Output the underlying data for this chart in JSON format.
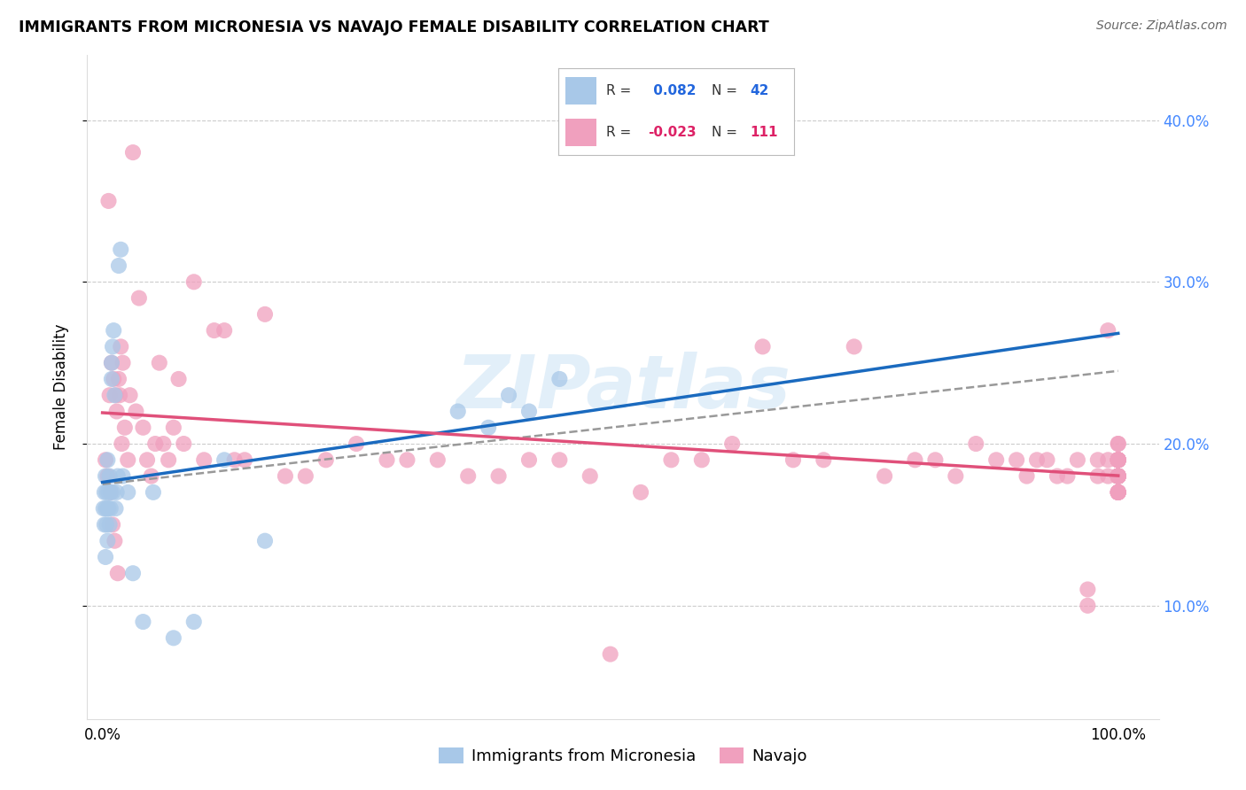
{
  "title": "IMMIGRANTS FROM MICRONESIA VS NAVAJO FEMALE DISABILITY CORRELATION CHART",
  "source": "Source: ZipAtlas.com",
  "ylabel": "Female Disability",
  "y_ticks": [
    0.1,
    0.2,
    0.3,
    0.4
  ],
  "y_tick_labels": [
    "10.0%",
    "20.0%",
    "30.0%",
    "40.0%"
  ],
  "xlim": [
    0.0,
    1.0
  ],
  "ylim": [
    0.03,
    0.44
  ],
  "blue_color": "#a8c8e8",
  "pink_color": "#f0a0be",
  "blue_line_color": "#1a6abf",
  "pink_line_color": "#e0507a",
  "gray_dash_color": "#999999",
  "blue_r": 0.082,
  "pink_r": -0.023,
  "blue_n": 42,
  "pink_n": 111,
  "watermark": "ZIPatlas",
  "legend_r1_text": "R = ",
  "legend_r1_val": " 0.082",
  "legend_n1_text": "N = ",
  "legend_n1_val": "42",
  "legend_r2_text": "R = ",
  "legend_r2_val": "-0.023",
  "legend_n2_text": "N = ",
  "legend_n2_val": "111",
  "blue_x": [
    0.001,
    0.002,
    0.002,
    0.003,
    0.003,
    0.003,
    0.004,
    0.004,
    0.005,
    0.005,
    0.005,
    0.006,
    0.006,
    0.007,
    0.007,
    0.008,
    0.008,
    0.009,
    0.009,
    0.01,
    0.01,
    0.011,
    0.012,
    0.013,
    0.014,
    0.015,
    0.016,
    0.018,
    0.02,
    0.025,
    0.03,
    0.04,
    0.05,
    0.07,
    0.09,
    0.12,
    0.16,
    0.35,
    0.38,
    0.4,
    0.42,
    0.45
  ],
  "blue_y": [
    0.16,
    0.17,
    0.15,
    0.18,
    0.16,
    0.13,
    0.17,
    0.15,
    0.16,
    0.19,
    0.14,
    0.17,
    0.16,
    0.18,
    0.15,
    0.17,
    0.16,
    0.25,
    0.24,
    0.26,
    0.17,
    0.27,
    0.23,
    0.16,
    0.17,
    0.18,
    0.31,
    0.32,
    0.18,
    0.17,
    0.12,
    0.09,
    0.17,
    0.08,
    0.09,
    0.19,
    0.14,
    0.22,
    0.21,
    0.23,
    0.22,
    0.24
  ],
  "pink_x": [
    0.003,
    0.005,
    0.006,
    0.007,
    0.008,
    0.009,
    0.01,
    0.011,
    0.012,
    0.013,
    0.014,
    0.015,
    0.016,
    0.017,
    0.018,
    0.019,
    0.02,
    0.022,
    0.025,
    0.027,
    0.03,
    0.033,
    0.036,
    0.04,
    0.044,
    0.048,
    0.052,
    0.056,
    0.06,
    0.065,
    0.07,
    0.075,
    0.08,
    0.09,
    0.1,
    0.11,
    0.12,
    0.13,
    0.14,
    0.16,
    0.18,
    0.2,
    0.22,
    0.25,
    0.28,
    0.3,
    0.33,
    0.36,
    0.39,
    0.42,
    0.45,
    0.48,
    0.5,
    0.53,
    0.56,
    0.59,
    0.62,
    0.65,
    0.68,
    0.71,
    0.74,
    0.77,
    0.8,
    0.82,
    0.84,
    0.86,
    0.88,
    0.9,
    0.91,
    0.92,
    0.93,
    0.94,
    0.95,
    0.96,
    0.97,
    0.97,
    0.98,
    0.98,
    0.99,
    0.99,
    0.99,
    1.0,
    1.0,
    1.0,
    1.0,
    1.0,
    1.0,
    1.0,
    1.0,
    1.0,
    1.0,
    1.0,
    1.0,
    1.0,
    1.0,
    1.0,
    1.0,
    1.0,
    1.0,
    1.0,
    1.0,
    1.0,
    1.0,
    1.0,
    1.0,
    1.0,
    1.0,
    1.0,
    1.0,
    1.0,
    1.0
  ],
  "pink_y": [
    0.19,
    0.18,
    0.35,
    0.23,
    0.17,
    0.25,
    0.15,
    0.24,
    0.14,
    0.23,
    0.22,
    0.12,
    0.24,
    0.23,
    0.26,
    0.2,
    0.25,
    0.21,
    0.19,
    0.23,
    0.38,
    0.22,
    0.29,
    0.21,
    0.19,
    0.18,
    0.2,
    0.25,
    0.2,
    0.19,
    0.21,
    0.24,
    0.2,
    0.3,
    0.19,
    0.27,
    0.27,
    0.19,
    0.19,
    0.28,
    0.18,
    0.18,
    0.19,
    0.2,
    0.19,
    0.19,
    0.19,
    0.18,
    0.18,
    0.19,
    0.19,
    0.18,
    0.07,
    0.17,
    0.19,
    0.19,
    0.2,
    0.26,
    0.19,
    0.19,
    0.26,
    0.18,
    0.19,
    0.19,
    0.18,
    0.2,
    0.19,
    0.19,
    0.18,
    0.19,
    0.19,
    0.18,
    0.18,
    0.19,
    0.1,
    0.11,
    0.18,
    0.19,
    0.19,
    0.18,
    0.27,
    0.18,
    0.17,
    0.19,
    0.18,
    0.19,
    0.17,
    0.18,
    0.19,
    0.18,
    0.17,
    0.19,
    0.18,
    0.2,
    0.19,
    0.18,
    0.17,
    0.18,
    0.18,
    0.19,
    0.18,
    0.19,
    0.17,
    0.19,
    0.18,
    0.17,
    0.19,
    0.2,
    0.19,
    0.18,
    0.17
  ]
}
